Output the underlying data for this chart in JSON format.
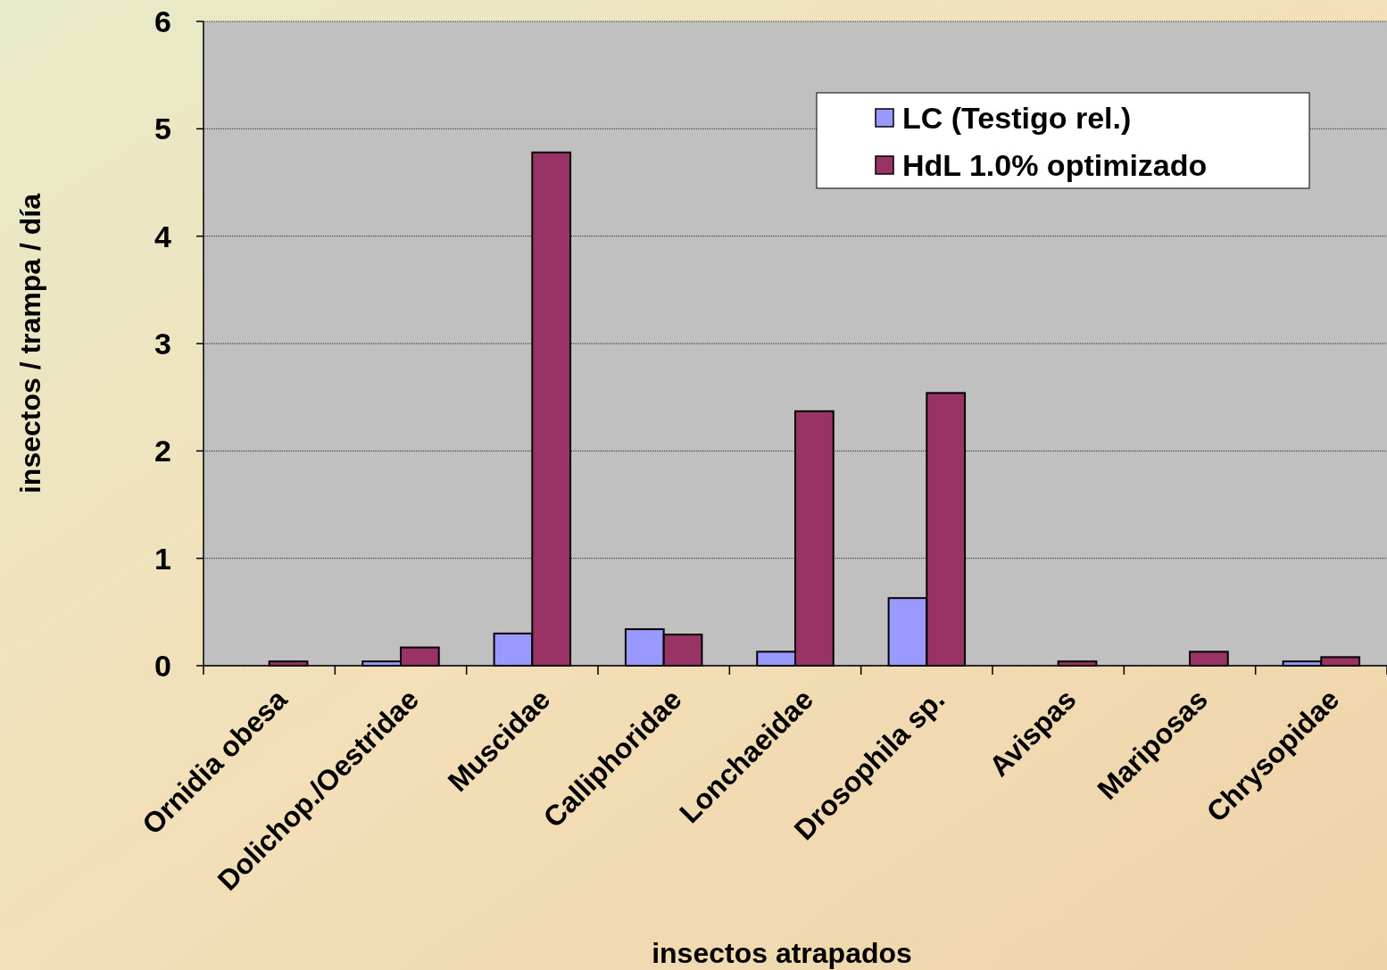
{
  "chart_data": {
    "type": "bar",
    "xlabel": "insectos atrapados",
    "ylabel": "insectos / trampa / día",
    "categories": [
      "Ornidia obesa",
      "Dolichop./Oestridae",
      "Muscidae",
      "Calliphoridae",
      "Lonchaeidae",
      "Drosophila sp.",
      "Avispas",
      "Mariposas",
      "Chrysopidae"
    ],
    "series": [
      {
        "name": "LC (Testigo rel.)",
        "color": "#9999ff",
        "values": [
          0,
          0.04,
          0.3,
          0.34,
          0.13,
          0.63,
          0,
          0,
          0.04
        ]
      },
      {
        "name": "HdL 1.0% optimizado",
        "color": "#993366",
        "values": [
          0.04,
          0.17,
          4.78,
          0.29,
          2.37,
          2.54,
          0.04,
          0.13,
          0.08
        ]
      }
    ],
    "ylim": [
      0,
      6
    ],
    "yticks": [
      0,
      1,
      2,
      3,
      4,
      5,
      6
    ],
    "grid": "y",
    "legend": "top right"
  }
}
